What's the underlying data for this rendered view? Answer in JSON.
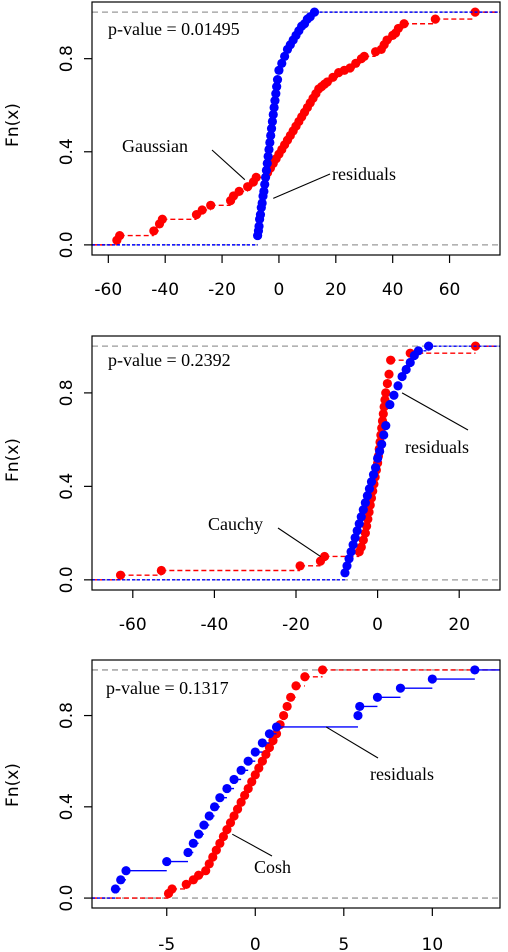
{
  "ylabel_text": "Fn(x)",
  "chart_data": [
    {
      "type": "line",
      "subtype": "ecdf-step",
      "title": "",
      "xlabel": "",
      "ylabel": "Fn(x)",
      "xlim": [
        -60,
        72
      ],
      "ylim": [
        0,
        1
      ],
      "xticks": [
        -60,
        -40,
        -20,
        0,
        20,
        40,
        60
      ],
      "xtick_labels": [
        "-60",
        "-40",
        "-20",
        "0",
        "20",
        "40",
        "60"
      ],
      "yticks": [
        0.0,
        0.4,
        0.8
      ],
      "ytick_labels": [
        "0.0",
        "0.4",
        "0.8"
      ],
      "grid": false,
      "pvalue_text": "p-value = 0.01495",
      "series": [
        {
          "name": "Gaussian",
          "color": "#ff0000",
          "x": [
            -57,
            -56,
            -44,
            -42,
            -41,
            -29,
            -27,
            -24,
            -17,
            -16,
            -14,
            -11,
            -9,
            -8,
            -4,
            -3,
            -2,
            -1,
            0,
            1,
            2,
            3,
            4,
            5,
            6,
            7,
            8,
            9,
            10,
            11,
            12,
            13,
            14,
            15,
            16,
            17,
            19,
            21,
            23,
            25,
            27,
            29,
            30,
            34,
            36,
            37,
            38,
            40,
            41,
            42,
            44,
            55,
            69
          ],
          "y": [
            0.02,
            0.04,
            0.06,
            0.09,
            0.11,
            0.13,
            0.15,
            0.17,
            0.19,
            0.21,
            0.23,
            0.25,
            0.27,
            0.29,
            0.31,
            0.33,
            0.35,
            0.37,
            0.39,
            0.41,
            0.43,
            0.45,
            0.47,
            0.49,
            0.51,
            0.53,
            0.55,
            0.57,
            0.59,
            0.61,
            0.63,
            0.65,
            0.67,
            0.68,
            0.69,
            0.7,
            0.72,
            0.74,
            0.75,
            0.76,
            0.78,
            0.8,
            0.81,
            0.83,
            0.84,
            0.86,
            0.88,
            0.9,
            0.91,
            0.93,
            0.95,
            0.97,
            1.0
          ]
        },
        {
          "name": "residuals",
          "color": "#0000ff",
          "x": [
            -7.5,
            -7.2,
            -7.0,
            -6.8,
            -6.5,
            -6.2,
            -5.9,
            -5.6,
            -5.3,
            -5.0,
            -4.7,
            -4.4,
            -4.1,
            -3.8,
            -3.5,
            -3.2,
            -2.9,
            -2.6,
            -2.3,
            -2.0,
            -1.7,
            -1.4,
            -1.1,
            -0.8,
            -0.5,
            0.0,
            1.0,
            2.0,
            3.0,
            4.0,
            5.0,
            6.0,
            7.0,
            8.0,
            9.0,
            10.0,
            11.0,
            12.5
          ],
          "y": [
            0.04,
            0.06,
            0.08,
            0.11,
            0.13,
            0.16,
            0.18,
            0.21,
            0.23,
            0.26,
            0.29,
            0.32,
            0.35,
            0.38,
            0.41,
            0.44,
            0.47,
            0.5,
            0.53,
            0.56,
            0.59,
            0.62,
            0.65,
            0.68,
            0.71,
            0.75,
            0.78,
            0.81,
            0.84,
            0.86,
            0.88,
            0.9,
            0.92,
            0.94,
            0.95,
            0.97,
            0.98,
            1.0
          ]
        }
      ],
      "annotations": [
        {
          "text": "Gaussian",
          "target_x": -12,
          "target_y": 0.28
        },
        {
          "text": "residuals",
          "target_x": -2,
          "target_y": 0.2
        }
      ]
    },
    {
      "type": "line",
      "subtype": "ecdf-step",
      "title": "",
      "xlabel": "",
      "ylabel": "Fn(x)",
      "xlim": [
        -66,
        26
      ],
      "ylim": [
        0,
        1
      ],
      "xticks": [
        -60,
        -40,
        -20,
        0,
        20
      ],
      "xtick_labels": [
        "-60",
        "-40",
        "-20",
        "0",
        "20"
      ],
      "yticks": [
        0.0,
        0.4,
        0.8
      ],
      "ytick_labels": [
        "0.0",
        "0.4",
        "0.8"
      ],
      "grid": false,
      "pvalue_text": "p-value = 0.2392",
      "series": [
        {
          "name": "Cauchy",
          "color": "#ff0000",
          "x": [
            -63,
            -53,
            -19,
            -14,
            -13,
            -4.5,
            -4,
            -3.5,
            -3,
            -2.7,
            -2.4,
            -2.1,
            -1.8,
            -1.5,
            -1.2,
            -0.9,
            -0.6,
            -0.3,
            0,
            0.2,
            0.4,
            0.6,
            0.8,
            1.0,
            1.2,
            1.4,
            1.6,
            1.8,
            2.0,
            2.4,
            2.8,
            3.2,
            8,
            24
          ],
          "y": [
            0.02,
            0.04,
            0.06,
            0.08,
            0.1,
            0.12,
            0.14,
            0.17,
            0.2,
            0.23,
            0.26,
            0.29,
            0.32,
            0.35,
            0.38,
            0.41,
            0.44,
            0.47,
            0.5,
            0.53,
            0.56,
            0.59,
            0.62,
            0.65,
            0.68,
            0.71,
            0.74,
            0.77,
            0.8,
            0.84,
            0.88,
            0.94,
            0.97,
            1.0
          ]
        },
        {
          "name": "residuals",
          "color": "#0000ff",
          "x": [
            -8,
            -7.5,
            -7,
            -6.5,
            -6,
            -5.5,
            -5,
            -4.5,
            -4,
            -3.5,
            -3,
            -2.5,
            -2,
            -1.5,
            -1,
            -0.5,
            0,
            0.5,
            1,
            1.5,
            2,
            3,
            4,
            5,
            6,
            7,
            8,
            9,
            10,
            12.5
          ],
          "y": [
            0.03,
            0.06,
            0.09,
            0.12,
            0.15,
            0.18,
            0.21,
            0.24,
            0.27,
            0.3,
            0.33,
            0.36,
            0.39,
            0.42,
            0.45,
            0.48,
            0.52,
            0.55,
            0.58,
            0.62,
            0.66,
            0.75,
            0.79,
            0.83,
            0.87,
            0.9,
            0.93,
            0.96,
            0.98,
            1.0
          ]
        }
      ],
      "annotations": [
        {
          "text": "Cauchy",
          "target_x": -14,
          "target_y": 0.1
        },
        {
          "text": "residuals",
          "target_x": 6,
          "target_y": 0.8
        }
      ]
    },
    {
      "type": "line",
      "subtype": "ecdf-step",
      "title": "",
      "xlabel": "",
      "ylabel": "Fn(x)",
      "xlim": [
        -8.3,
        12.9
      ],
      "ylim": [
        0,
        1
      ],
      "xticks": [
        -5,
        0,
        5,
        10
      ],
      "xtick_labels": [
        "-5",
        "0",
        "5",
        "10"
      ],
      "yticks": [
        0.0,
        0.4,
        0.8
      ],
      "ytick_labels": [
        "0.0",
        "0.4",
        "0.8"
      ],
      "grid": false,
      "pvalue_text": "p-value = 0.1317",
      "series": [
        {
          "name": "Cosh",
          "color": "#ff0000",
          "x": [
            -4.9,
            -4.7,
            -3.9,
            -3.5,
            -3.2,
            -2.8,
            -2.6,
            -2.4,
            -2.2,
            -2.0,
            -1.8,
            -1.6,
            -1.4,
            -1.2,
            -1.0,
            -0.8,
            -0.6,
            -0.4,
            -0.2,
            0.0,
            0.2,
            0.4,
            0.6,
            0.8,
            1.0,
            1.2,
            1.4,
            1.6,
            1.8,
            2.0,
            2.3,
            2.8,
            3.8
          ],
          "y": [
            0.02,
            0.04,
            0.06,
            0.08,
            0.1,
            0.12,
            0.15,
            0.18,
            0.21,
            0.24,
            0.27,
            0.3,
            0.33,
            0.36,
            0.39,
            0.42,
            0.45,
            0.48,
            0.51,
            0.54,
            0.57,
            0.6,
            0.63,
            0.66,
            0.69,
            0.72,
            0.76,
            0.8,
            0.84,
            0.88,
            0.93,
            0.97,
            1.0
          ]
        },
        {
          "name": "residuals",
          "color": "#0000ff",
          "x": [
            -7.9,
            -7.6,
            -7.3,
            -5,
            -3.8,
            -3.5,
            -3.2,
            -2.9,
            -2.6,
            -2.3,
            -2.0,
            -1.6,
            -1.2,
            -0.8,
            -0.4,
            0.0,
            0.4,
            0.8,
            1.2,
            5.8,
            5.9,
            6.9,
            8.2,
            10.0,
            12.4
          ],
          "y": [
            0.04,
            0.08,
            0.12,
            0.16,
            0.2,
            0.24,
            0.28,
            0.32,
            0.36,
            0.4,
            0.44,
            0.48,
            0.52,
            0.56,
            0.6,
            0.64,
            0.68,
            0.72,
            0.75,
            0.8,
            0.84,
            0.88,
            0.92,
            0.96,
            1.0
          ]
        }
      ],
      "annotations": [
        {
          "text": "Cosh",
          "target_x": -1.3,
          "target_y": 0.28
        },
        {
          "text": "residuals",
          "target_x": 4,
          "target_y": 0.75
        }
      ]
    }
  ]
}
